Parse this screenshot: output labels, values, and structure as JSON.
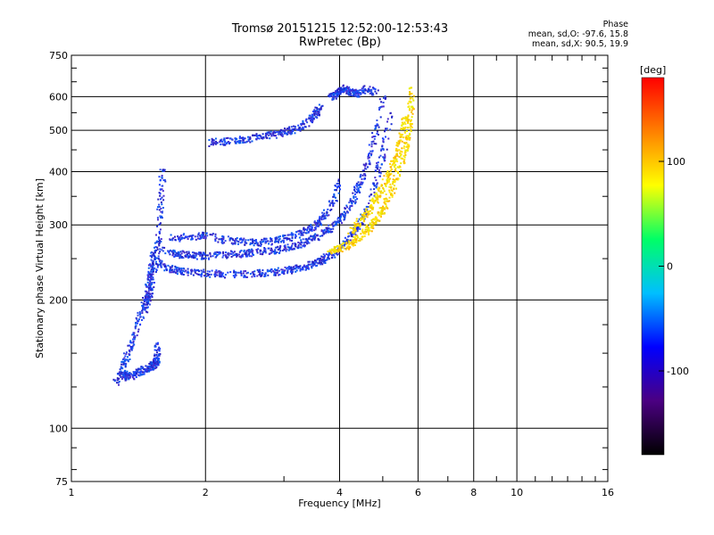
{
  "header": {
    "title": "Tromsø 20151215 12:52:00-12:53:43",
    "subtitle": "RwPretec (Bp)",
    "phase_label": "Phase",
    "phase_o": "mean, sd,O: -97.6, 15.8",
    "phase_x": "mean, sd,X:  90.5, 19.9"
  },
  "chart_data": {
    "type": "scatter",
    "title": "Tromsø 20151215 12:52:00-12:53:43",
    "subtitle": "RwPretec (Bp)",
    "xlabel": "Frequency [MHz]",
    "ylabel": "Stationary phase Virtual Height [km]",
    "x_scale": "log",
    "y_scale": "log",
    "xlim": [
      1,
      16
    ],
    "ylim": [
      75,
      750
    ],
    "x_ticks": [
      1,
      2,
      4,
      6,
      8,
      10,
      16
    ],
    "x_tick_labels": [
      "1",
      "2",
      "4",
      "6",
      "8",
      "10",
      "16"
    ],
    "y_ticks": [
      75,
      100,
      200,
      300,
      400,
      500,
      600,
      750
    ],
    "y_tick_labels": [
      "75",
      "100",
      "200",
      "300",
      "400",
      "500",
      "600",
      "750"
    ],
    "grid": true,
    "colorbar": {
      "label": "[deg]",
      "range": [
        -180,
        180
      ],
      "ticks": [
        -100,
        0,
        100
      ],
      "tick_labels": [
        "-100",
        "0",
        "100"
      ],
      "colors": [
        "#000000",
        "#4b0082",
        "#0000ff",
        "#00bfff",
        "#00ff66",
        "#ffff00",
        "#ff8000",
        "#ff0000"
      ]
    },
    "series": [
      {
        "name": "O",
        "color": "#1a2fd6",
        "traces": [
          {
            "x": [
              1.3,
              1.33,
              1.36,
              1.4,
              1.45,
              1.5,
              1.53,
              1.55,
              1.56
            ],
            "y": [
              132,
              134,
              133,
              135,
              138,
              140,
              142,
              145,
              160
            ]
          },
          {
            "x": [
              1.25,
              1.3,
              1.35,
              1.4,
              1.45,
              1.48,
              1.5,
              1.52
            ],
            "y": [
              128,
              140,
              155,
              175,
              195,
              215,
              235,
              260
            ]
          },
          {
            "x": [
              1.45,
              1.5,
              1.53,
              1.56,
              1.58,
              1.6
            ],
            "y": [
              190,
              210,
              240,
              280,
              340,
              410
            ]
          },
          {
            "x": [
              1.56,
              1.65,
              1.75,
              1.85,
              2.0,
              2.2,
              2.4,
              2.6,
              2.8,
              3.0,
              3.2,
              3.4,
              3.6,
              3.8,
              4.0,
              4.2,
              4.4,
              4.6,
              4.8,
              5.0,
              5.2
            ],
            "y": [
              245,
              238,
              235,
              233,
              232,
              231,
              231,
              232,
              233,
              235,
              238,
              242,
              248,
              255,
              265,
              280,
              300,
              330,
              380,
              450,
              560
            ]
          },
          {
            "x": [
              1.6,
              1.7,
              1.8,
              1.9,
              2.0,
              2.2,
              2.4,
              2.6,
              2.8,
              3.0,
              3.2,
              3.4,
              3.6,
              3.8,
              4.0,
              4.2,
              4.4,
              4.6,
              4.8,
              5.0
            ],
            "y": [
              262,
              258,
              256,
              255,
              255,
              256,
              258,
              260,
              262,
              265,
              270,
              276,
              285,
              295,
              310,
              335,
              370,
              420,
              490,
              600
            ]
          },
          {
            "x": [
              1.65,
              1.8,
              2.0,
              2.2,
              2.4,
              2.6,
              2.8,
              3.0,
              3.2,
              3.4,
              3.6,
              3.8,
              4.0
            ],
            "y": [
              280,
              282,
              285,
              278,
              275,
              274,
              276,
              280,
              286,
              294,
              306,
              330,
              380
            ]
          },
          {
            "x": [
              2.05,
              2.2,
              2.4,
              2.6,
              2.8,
              3.0,
              3.2,
              3.4,
              3.5,
              3.6
            ],
            "y": [
              470,
              473,
              478,
              484,
              490,
              498,
              508,
              525,
              545,
              570
            ]
          },
          {
            "x": [
              3.8,
              3.9,
              4.0,
              4.1,
              4.2,
              4.4,
              4.6,
              4.8
            ],
            "y": [
              600,
              610,
              620,
              630,
              620,
              610,
              630,
              615
            ]
          }
        ]
      },
      {
        "name": "X",
        "color": "#f0e000",
        "traces": [
          {
            "x": [
              3.8,
              4.0,
              4.2,
              4.4,
              4.6,
              4.8,
              5.0,
              5.2,
              5.4,
              5.6,
              5.7,
              5.75,
              5.8
            ],
            "y": [
              262,
              266,
              272,
              280,
              292,
              308,
              330,
              360,
              400,
              450,
              500,
              560,
              630
            ]
          },
          {
            "x": [
              4.2,
              4.4,
              4.6,
              4.8,
              5.0,
              5.2,
              5.4,
              5.5,
              5.6
            ],
            "y": [
              290,
              305,
              322,
              345,
              372,
              405,
              445,
              490,
              540
            ]
          }
        ]
      }
    ]
  }
}
